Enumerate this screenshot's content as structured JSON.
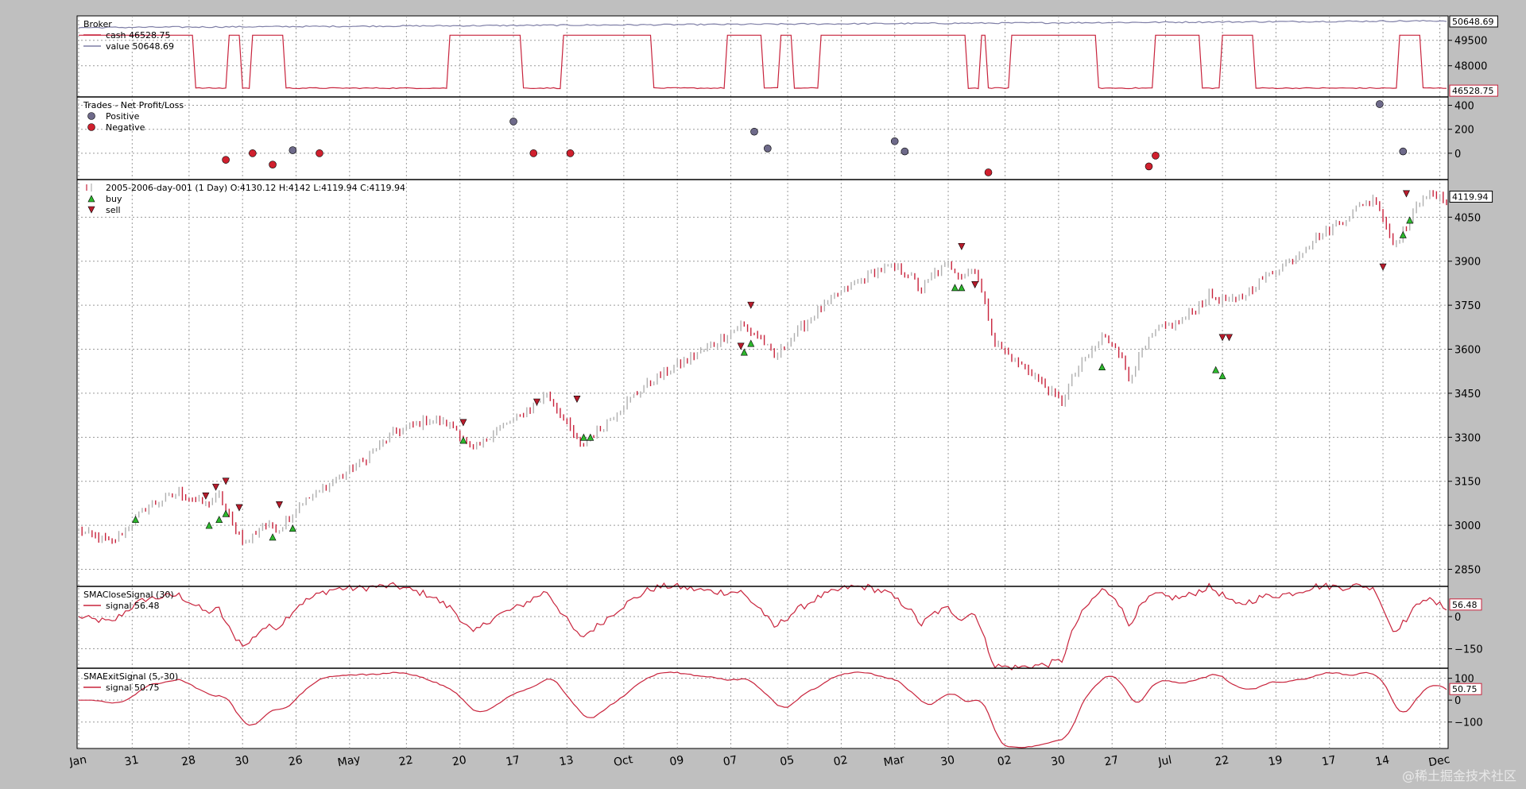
{
  "chart_data": [
    {
      "type": "line",
      "panel": "broker",
      "title": "Broker",
      "series": [
        {
          "name": "cash 46528.75",
          "color": "#c8233c"
        },
        {
          "name": "value 50648.69",
          "color": "#7e7ea6"
        }
      ],
      "yticks": [
        "49500",
        "48000"
      ],
      "last_labels": [
        "50648.69",
        "46528.75"
      ],
      "ylim": [
        46300,
        50800
      ]
    },
    {
      "type": "scatter",
      "panel": "trades",
      "title": "Trades - Net Profit/Loss",
      "series": [
        {
          "name": "Positive",
          "color": "#6e6a8a"
        },
        {
          "name": "Negative",
          "color": "#d0202e"
        }
      ],
      "yticks": [
        "400",
        "200",
        "0"
      ],
      "ylim": [
        -200,
        450
      ]
    },
    {
      "type": "bar",
      "panel": "price",
      "title": "2005-2006-day-001 (1 Day) O:4130.12 H:4142 L:4119.94 C:4119.94",
      "series": [
        {
          "name": "buy",
          "color": "#2db82d"
        },
        {
          "name": "sell",
          "color": "#b81c2c"
        }
      ],
      "yticks": [
        "4050",
        "3900",
        "3750",
        "3600",
        "3450",
        "3300",
        "3150",
        "3000",
        "2850"
      ],
      "last_label": "4119.94",
      "ylim": [
        2800,
        4170
      ],
      "anchors": [
        [
          0,
          2980
        ],
        [
          10,
          2940
        ],
        [
          20,
          3060
        ],
        [
          30,
          3110
        ],
        [
          38,
          3070
        ],
        [
          42,
          3100
        ],
        [
          46,
          3000
        ],
        [
          50,
          2940
        ],
        [
          55,
          3000
        ],
        [
          60,
          2990
        ],
        [
          66,
          3070
        ],
        [
          75,
          3140
        ],
        [
          85,
          3220
        ],
        [
          95,
          3320
        ],
        [
          105,
          3360
        ],
        [
          112,
          3340
        ],
        [
          118,
          3250
        ],
        [
          124,
          3320
        ],
        [
          132,
          3370
        ],
        [
          140,
          3450
        ],
        [
          145,
          3360
        ],
        [
          150,
          3270
        ],
        [
          156,
          3330
        ],
        [
          162,
          3400
        ],
        [
          170,
          3480
        ],
        [
          180,
          3550
        ],
        [
          190,
          3620
        ],
        [
          198,
          3680
        ],
        [
          204,
          3640
        ],
        [
          208,
          3570
        ],
        [
          214,
          3650
        ],
        [
          222,
          3740
        ],
        [
          230,
          3810
        ],
        [
          236,
          3850
        ],
        [
          242,
          3880
        ],
        [
          248,
          3860
        ],
        [
          252,
          3800
        ],
        [
          256,
          3860
        ],
        [
          260,
          3890
        ],
        [
          264,
          3850
        ],
        [
          268,
          3880
        ],
        [
          274,
          3620
        ],
        [
          280,
          3560
        ],
        [
          285,
          3520
        ],
        [
          290,
          3460
        ],
        [
          294,
          3420
        ],
        [
          298,
          3520
        ],
        [
          302,
          3580
        ],
        [
          306,
          3640
        ],
        [
          310,
          3620
        ],
        [
          314,
          3500
        ],
        [
          318,
          3590
        ],
        [
          322,
          3660
        ],
        [
          330,
          3700
        ],
        [
          338,
          3780
        ],
        [
          346,
          3760
        ],
        [
          354,
          3840
        ],
        [
          362,
          3900
        ],
        [
          370,
          3980
        ],
        [
          378,
          4040
        ],
        [
          384,
          4100
        ],
        [
          388,
          4110
        ],
        [
          390,
          4050
        ],
        [
          393,
          3960
        ],
        [
          396,
          4000
        ],
        [
          399,
          4060
        ],
        [
          402,
          4130
        ],
        [
          408,
          4110
        ]
      ],
      "buy_markers": [
        [
          17,
          3020
        ],
        [
          39,
          3000
        ],
        [
          42,
          3020
        ],
        [
          44,
          3040
        ],
        [
          58,
          2960
        ],
        [
          64,
          2990
        ],
        [
          115,
          3290
        ],
        [
          151,
          3300
        ],
        [
          153,
          3300
        ],
        [
          199,
          3590
        ],
        [
          201,
          3620
        ],
        [
          262,
          3810
        ],
        [
          264,
          3810
        ],
        [
          306,
          3540
        ],
        [
          340,
          3530
        ],
        [
          342,
          3510
        ],
        [
          396,
          3990
        ],
        [
          398,
          4040
        ]
      ],
      "sell_markers": [
        [
          38,
          3100
        ],
        [
          41,
          3130
        ],
        [
          44,
          3150
        ],
        [
          48,
          3060
        ],
        [
          60,
          3070
        ],
        [
          115,
          3350
        ],
        [
          137,
          3420
        ],
        [
          149,
          3430
        ],
        [
          198,
          3610
        ],
        [
          201,
          3750
        ],
        [
          264,
          3950
        ],
        [
          268,
          3820
        ],
        [
          342,
          3640
        ],
        [
          344,
          3640
        ],
        [
          390,
          3880
        ],
        [
          397,
          4130
        ]
      ]
    },
    {
      "type": "line",
      "panel": "sma_close",
      "title": "SMACloseSignal (30)",
      "series": [
        {
          "name": "signal 56.48",
          "color": "#c8233c"
        }
      ],
      "yticks": [
        "0",
        "−150"
      ],
      "last_label": "56.48",
      "ylim": [
        -230,
        130
      ]
    },
    {
      "type": "line",
      "panel": "sma_exit",
      "title": "SMAExitSignal (5,-30)",
      "series": [
        {
          "name": "signal 50.75",
          "color": "#c8233c"
        }
      ],
      "yticks": [
        "100",
        "0",
        "−100"
      ],
      "last_label": "50.75",
      "ylim": [
        -210,
        135
      ]
    }
  ],
  "xaxis": {
    "labels": [
      "Jan",
      "31",
      "28",
      "30",
      "26",
      "May",
      "22",
      "20",
      "17",
      "13",
      "Oct",
      "09",
      "07",
      "05",
      "02",
      "Mar",
      "30",
      "02",
      "30",
      "27",
      "Jul",
      "22",
      "19",
      "17",
      "14",
      "Dec"
    ]
  },
  "watermark": "@稀土掘金技术社区"
}
